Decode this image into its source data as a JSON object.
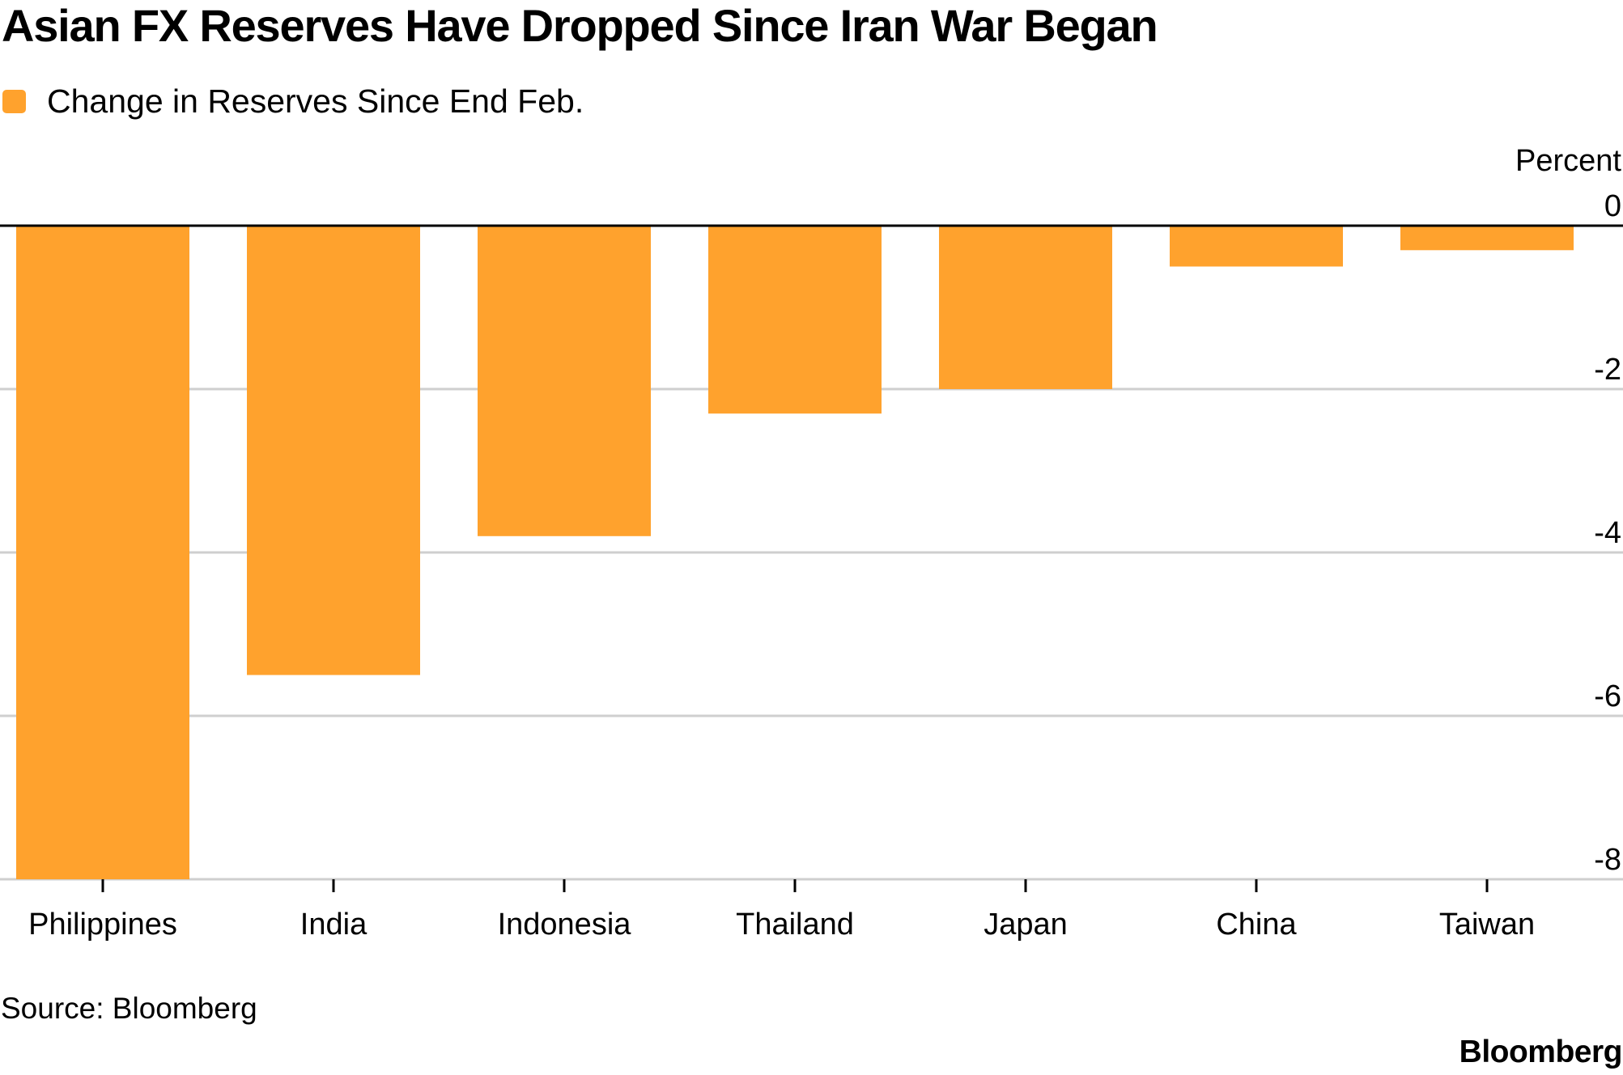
{
  "chart_data": {
    "type": "bar",
    "title": "Asian FX Reserves Have Dropped Since Iran War Began",
    "legend_position": "top-left",
    "ylabel": "Percent",
    "ylim": [
      -8,
      0
    ],
    "yticks": [
      0,
      -2,
      -4,
      -6,
      -8
    ],
    "ytick_labels": [
      "0",
      "-2",
      "-4",
      "-6",
      "-8"
    ],
    "grid": true,
    "categories": [
      "Philippines",
      "India",
      "Indonesia",
      "Thailand",
      "Japan",
      "China",
      "Taiwan"
    ],
    "series": [
      {
        "name": "Change in Reserves Since End Feb.",
        "color": "#FFA22D",
        "values": [
          -8.4,
          -5.5,
          -3.8,
          -2.3,
          -2.0,
          -0.5,
          -0.3
        ]
      }
    ]
  },
  "colors": {
    "bar": "#FFA22D",
    "gridline": "#CFCFCF",
    "zero_line": "#000000",
    "text": "#000000"
  },
  "footer": {
    "source": "Source: Bloomberg",
    "brand": "Bloomberg"
  }
}
